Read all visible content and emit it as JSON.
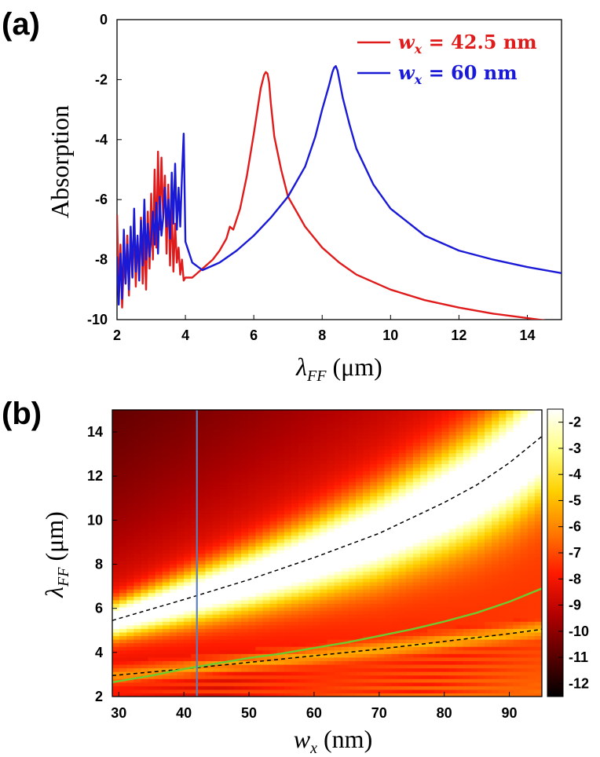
{
  "panels": {
    "a": {
      "label": "(a)",
      "chart_data": {
        "type": "line",
        "xlabel": "λ_FF (μm)",
        "ylabel": "Absorption",
        "xlim": [
          2,
          15
        ],
        "ylim": [
          -10,
          0
        ],
        "xticks": [
          "2",
          "4",
          "6",
          "8",
          "10",
          "12",
          "14"
        ],
        "yticks": [
          "0",
          "-2",
          "-4",
          "-6",
          "-8",
          "-10"
        ],
        "legend_position": "top-right",
        "series": [
          {
            "name": "w_x = 42.5 nm",
            "color": "#e01b1b",
            "x": [
              2.0,
              2.05,
              2.1,
              2.15,
              2.2,
              2.25,
              2.3,
              2.35,
              2.4,
              2.45,
              2.5,
              2.55,
              2.6,
              2.65,
              2.7,
              2.75,
              2.8,
              2.85,
              2.9,
              2.95,
              3.0,
              3.05,
              3.1,
              3.15,
              3.2,
              3.25,
              3.3,
              3.35,
              3.4,
              3.45,
              3.5,
              3.55,
              3.6,
              3.65,
              3.7,
              3.75,
              3.8,
              3.85,
              3.9,
              3.95,
              4.0,
              4.2,
              4.5,
              4.8,
              5.0,
              5.2,
              5.3,
              5.4,
              5.6,
              5.8,
              6.0,
              6.2,
              6.3,
              6.35,
              6.4,
              6.45,
              6.5,
              6.6,
              6.8,
              7.0,
              7.5,
              8.0,
              8.5,
              9.0,
              10.0,
              11.0,
              12.0,
              13.0,
              14.0,
              15.0
            ],
            "y": [
              -6.5,
              -9.0,
              -7.5,
              -9.6,
              -8.0,
              -8.8,
              -7.2,
              -9.2,
              -7.0,
              -8.6,
              -6.8,
              -8.9,
              -7.3,
              -8.5,
              -6.6,
              -8.8,
              -7.1,
              -9.0,
              -6.4,
              -8.3,
              -5.8,
              -8.0,
              -5.0,
              -7.6,
              -4.4,
              -7.0,
              -4.6,
              -6.6,
              -5.2,
              -7.8,
              -5.5,
              -8.2,
              -6.2,
              -8.4,
              -6.8,
              -8.1,
              -7.6,
              -8.5,
              -8.0,
              -8.7,
              -8.6,
              -8.6,
              -8.3,
              -8.0,
              -7.7,
              -7.3,
              -6.9,
              -7.0,
              -6.3,
              -5.2,
              -3.8,
              -2.3,
              -1.85,
              -1.75,
              -1.8,
              -2.1,
              -2.8,
              -3.9,
              -5.0,
              -5.9,
              -6.9,
              -7.6,
              -8.1,
              -8.5,
              -9.0,
              -9.35,
              -9.6,
              -9.8,
              -9.95,
              -10.1
            ]
          },
          {
            "name": "w_x = 60 nm",
            "color": "#1a1ad6",
            "x": [
              2.0,
              2.05,
              2.1,
              2.15,
              2.2,
              2.25,
              2.3,
              2.35,
              2.4,
              2.45,
              2.5,
              2.55,
              2.6,
              2.65,
              2.7,
              2.75,
              2.8,
              2.85,
              2.9,
              2.95,
              3.0,
              3.05,
              3.1,
              3.15,
              3.2,
              3.25,
              3.3,
              3.35,
              3.4,
              3.45,
              3.5,
              3.55,
              3.6,
              3.65,
              3.7,
              3.75,
              3.8,
              3.85,
              3.9,
              3.95,
              4.0,
              4.2,
              4.5,
              5.0,
              5.5,
              6.0,
              6.5,
              7.0,
              7.5,
              7.8,
              8.0,
              8.2,
              8.3,
              8.35,
              8.4,
              8.45,
              8.5,
              8.6,
              8.8,
              9.0,
              9.5,
              10.0,
              11.0,
              12.0,
              13.0,
              14.0,
              15.0
            ],
            "y": [
              -7.9,
              -9.5,
              -7.8,
              -9.3,
              -7.0,
              -8.8,
              -7.5,
              -9.0,
              -6.9,
              -8.6,
              -6.3,
              -8.4,
              -7.2,
              -8.7,
              -6.7,
              -8.2,
              -6.0,
              -8.0,
              -6.8,
              -7.9,
              -7.3,
              -6.4,
              -7.5,
              -6.1,
              -7.8,
              -5.9,
              -7.2,
              -6.6,
              -5.6,
              -6.9,
              -6.0,
              -7.3,
              -5.1,
              -6.8,
              -4.8,
              -7.0,
              -5.6,
              -6.9,
              -5.2,
              -3.8,
              -7.4,
              -8.1,
              -8.35,
              -8.1,
              -7.7,
              -7.2,
              -6.6,
              -5.9,
              -4.9,
              -3.9,
              -3.0,
              -2.2,
              -1.75,
              -1.6,
              -1.55,
              -1.7,
              -2.0,
              -2.6,
              -3.5,
              -4.3,
              -5.5,
              -6.3,
              -7.2,
              -7.7,
              -8.0,
              -8.25,
              -8.45
            ]
          }
        ]
      },
      "legend": [
        {
          "label": "w",
          "sub": "x",
          "rest": " = 42.5 nm",
          "color": "#e01b1b"
        },
        {
          "label": "w",
          "sub": "x",
          "rest": " = 60 nm",
          "color": "#1a1ad6"
        }
      ],
      "xlabel_main": "λ",
      "xlabel_sub": "FF",
      "xlabel_unit": " (μm)"
    },
    "b": {
      "label": "(b)",
      "chart_data": {
        "type": "heatmap",
        "xlabel": "w_x (nm)",
        "ylabel": "λ_FF (μm)",
        "xlim": [
          29,
          95
        ],
        "ylim": [
          2,
          15
        ],
        "xticks": [
          "30",
          "40",
          "50",
          "60",
          "70",
          "80",
          "90"
        ],
        "yticks": [
          "2",
          "4",
          "6",
          "8",
          "10",
          "12",
          "14"
        ],
        "colorbar": {
          "range": [
            -12.5,
            -1.5
          ],
          "ticks": [
            "-2",
            "-3",
            "-4",
            "-5",
            "-6",
            "-7",
            "-8",
            "-9",
            "-10",
            "-11",
            "-12"
          ],
          "colors": [
            "#000000",
            "#5a0000",
            "#b30000",
            "#ff1a00",
            "#ff7a00",
            "#ffd000",
            "#ffff80",
            "#ffffff"
          ]
        },
        "resonance_upper_dashed": {
          "x": [
            29,
            40,
            50,
            60,
            70,
            80,
            85,
            90,
            95
          ],
          "y": [
            5.45,
            6.4,
            7.3,
            8.3,
            9.4,
            10.8,
            11.6,
            12.6,
            13.8
          ]
        },
        "resonance_lower_dashed": {
          "x": [
            29,
            40,
            50,
            60,
            70,
            80,
            90,
            95
          ],
          "y": [
            2.95,
            3.25,
            3.55,
            3.85,
            4.15,
            4.5,
            4.85,
            5.05
          ]
        },
        "green_curve": {
          "color": "#6ecb2f",
          "x": [
            29,
            35,
            40,
            45,
            50,
            55,
            60,
            65,
            70,
            75,
            80,
            85,
            90,
            95
          ],
          "y": [
            2.65,
            2.95,
            3.25,
            3.5,
            3.75,
            3.95,
            4.2,
            4.45,
            4.75,
            5.05,
            5.4,
            5.8,
            6.3,
            6.9
          ]
        },
        "vertical_marker": {
          "x": 42,
          "color": "#5f7fb8"
        }
      },
      "xlabel_main": "w",
      "xlabel_sub": "x",
      "xlabel_unit": " (nm)",
      "ylabel_main": "λ",
      "ylabel_sub": "FF",
      "ylabel_unit": " (μm)"
    }
  }
}
